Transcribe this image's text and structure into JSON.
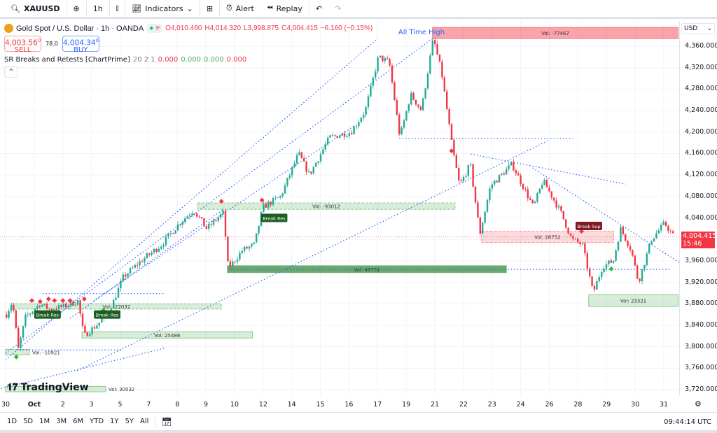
{
  "toolbar": {
    "symbol": "XAUUSD",
    "interval": "1h",
    "indicators": "Indicators",
    "alert": "Alert",
    "replay": "Replay"
  },
  "legend": {
    "title": "Gold Spot / U.S. Dollar · 1h · OANDA",
    "open": "O4,010.460",
    "high": "H4,014.320",
    "low": "L3,998.875",
    "close": "C4,004.415",
    "change": "−6.160 (−0.15%)",
    "sell_price": "4,003.56",
    "sell_sup": "0",
    "sell_label": "SELL",
    "spread": "78.0",
    "buy_price": "4,004.34",
    "buy_sup": "0",
    "buy_label": "BUY",
    "indicator": "SR Breaks and Retests [ChartPrime]",
    "params": "20 2 1",
    "v1": "0.000",
    "v2": "0.000",
    "v3": "0.000",
    "v4": "0.000"
  },
  "price_axis": {
    "currency": "USD",
    "ticks": [
      "4,360.000",
      "4,320.000",
      "4,280.000",
      "4,240.000",
      "4,200.000",
      "4,160.000",
      "4,120.000",
      "4,080.000",
      "4,040.000",
      "3,960.000",
      "3,920.000",
      "3,880.000",
      "3,840.000",
      "3,800.000",
      "3,760.000",
      "3,720.000"
    ],
    "last_price": "4,004.415",
    "countdown": "15:46"
  },
  "colors": {
    "up": "#22ab94",
    "down": "#f23645",
    "trend": "#2962ff",
    "support": "#4caf50",
    "resistance": "#f23645"
  },
  "bottom": {
    "ranges": [
      "1D",
      "5D",
      "1M",
      "3M",
      "6M",
      "YTD",
      "1Y",
      "5Y",
      "All"
    ],
    "clock": "09:44:14 UTC"
  },
  "branding": "TradingView",
  "chart_data": {
    "type": "candlestick",
    "ylim": [
      3700,
      4400
    ],
    "x_ticks": [
      {
        "label": "30",
        "date": "Sep 30"
      },
      {
        "label": "Oct",
        "date": "Oct 1"
      },
      {
        "label": "2",
        "date": "Oct 2"
      },
      {
        "label": "3",
        "date": "Oct 3"
      },
      {
        "label": "5",
        "date": "Oct 5"
      },
      {
        "label": "7",
        "date": "Oct 7"
      },
      {
        "label": "8",
        "date": "Oct 8"
      },
      {
        "label": "9",
        "date": "Oct 9"
      },
      {
        "label": "10",
        "date": "Oct 10"
      },
      {
        "label": "12",
        "date": "Oct 12"
      },
      {
        "label": "14",
        "date": "Oct 14"
      },
      {
        "label": "15",
        "date": "Oct 15"
      },
      {
        "label": "16",
        "date": "Oct 16"
      },
      {
        "label": "17",
        "date": "Oct 17"
      },
      {
        "label": "19",
        "date": "Oct 19"
      },
      {
        "label": "21",
        "date": "Oct 21"
      },
      {
        "label": "22",
        "date": "Oct 22"
      },
      {
        "label": "23",
        "date": "Oct 23"
      },
      {
        "label": "24",
        "date": "Oct 24"
      },
      {
        "label": "26",
        "date": "Oct 26"
      },
      {
        "label": "28",
        "date": "Oct 28"
      },
      {
        "label": "29",
        "date": "Oct 29"
      },
      {
        "label": "30",
        "date": "Oct 30"
      },
      {
        "label": "31",
        "date": "Oct 31"
      }
    ],
    "price_path": [
      [
        "Sep 30 00:00",
        3860
      ],
      [
        "Sep 30 05:00",
        3885
      ],
      [
        "Sep 30 10:00",
        3795
      ],
      [
        "Sep 30 16:00",
        3855
      ],
      [
        "Oct 1 04:00",
        3880
      ],
      [
        "Oct 1 12:00",
        3870
      ],
      [
        "Oct 2 00:00",
        3875
      ],
      [
        "Oct 2 12:00",
        3885
      ],
      [
        "Oct 2 17:00",
        3820
      ],
      [
        "Oct 3 06:00",
        3845
      ],
      [
        "Oct 3 17:00",
        3880
      ],
      [
        "Oct 5 02:00",
        3930
      ],
      [
        "Oct 5 17:00",
        3960
      ],
      [
        "Oct 7 10:00",
        3990
      ],
      [
        "Oct 8 01:00",
        4030
      ],
      [
        "Oct 8 13:00",
        4055
      ],
      [
        "Oct 9 00:00",
        4020
      ],
      [
        "Oct 9 14:00",
        4050
      ],
      [
        "Oct 9 18:00",
        3945
      ],
      [
        "Oct 10 06:00",
        3980
      ],
      [
        "Oct 10 16:00",
        3990
      ],
      [
        "Oct 10 23:00",
        4060
      ],
      [
        "Oct 12 14:00",
        4080
      ],
      [
        "Oct 14 05:00",
        4160
      ],
      [
        "Oct 14 14:00",
        4120
      ],
      [
        "Oct 15 07:00",
        4190
      ],
      [
        "Oct 16 01:00",
        4200
      ],
      [
        "Oct 16 13:00",
        4240
      ],
      [
        "Oct 17 00:00",
        4340
      ],
      [
        "Oct 17 09:00",
        4330
      ],
      [
        "Oct 17 18:00",
        4190
      ],
      [
        "Oct 19 03:00",
        4270
      ],
      [
        "Oct 19 12:00",
        4240
      ],
      [
        "Oct 19 22:00",
        4375
      ],
      [
        "Oct 21 05:00",
        4310
      ],
      [
        "Oct 21 14:00",
        4170
      ],
      [
        "Oct 21 20:00",
        4100
      ],
      [
        "Oct 22 05:00",
        4140
      ],
      [
        "Oct 22 13:00",
        4010
      ],
      [
        "Oct 22 22:00",
        4100
      ],
      [
        "Oct 23 16:00",
        4140
      ],
      [
        "Oct 24 01:00",
        4100
      ],
      [
        "Oct 24 10:00",
        4060
      ],
      [
        "Oct 24 18:00",
        4110
      ],
      [
        "Oct 26 09:00",
        4050
      ],
      [
        "Oct 26 18:00",
        4000
      ],
      [
        "Oct 28 03:00",
        3990
      ],
      [
        "Oct 28 12:00",
        3900
      ],
      [
        "Oct 28 20:00",
        3950
      ],
      [
        "Oct 29 05:00",
        3960
      ],
      [
        "Oct 29 11:00",
        4020
      ],
      [
        "Oct 29 20:00",
        3980
      ],
      [
        "Oct 30 02:00",
        3920
      ],
      [
        "Oct 30 13:00",
        4000
      ],
      [
        "Oct 31 00:00",
        4030
      ],
      [
        "Oct 31 08:00",
        4004
      ]
    ],
    "zones": [
      {
        "label": "Vol: -77467",
        "kind": "resistance",
        "style": "solid",
        "from": "Oct 19 22:00",
        "to": "Oct 31 12:00",
        "top": 4395,
        "bottom": 4374
      },
      {
        "label": "Vol: -93012",
        "kind": "support",
        "style": "dashed",
        "from": "Oct 8 17:00",
        "to": "Oct 21 17:00",
        "top": 4068,
        "bottom": 4056
      },
      {
        "label": "Vol: 49751",
        "kind": "support",
        "style": "strong",
        "from": "Oct 9 18:00",
        "to": "Oct 23 12:00",
        "top": 3951,
        "bottom": 3938
      },
      {
        "label": "Vol: 28752",
        "kind": "resistance",
        "style": "dashed",
        "from": "Oct 22 15:00",
        "to": "Oct 29 06:00",
        "top": 4015,
        "bottom": 3994
      },
      {
        "label": "Vol: 23321",
        "kind": "support",
        "style": "solid",
        "from": "Oct 28 09:00",
        "to": "Oct 31 12:00",
        "top": 3897,
        "bottom": 3875
      },
      {
        "label": "Vol: 25486",
        "kind": "support",
        "style": "solid",
        "from": "Oct 2 16:00",
        "to": "Oct 10 15:00",
        "top": 3828,
        "bottom": 3816
      },
      {
        "label": "Vol: -22032",
        "kind": "support",
        "style": "dashed",
        "from": "Sep 30 05:00",
        "to": "Oct 9 13:00",
        "top": 3880,
        "bottom": 3870
      },
      {
        "label": "Vol: -10921",
        "kind": "support",
        "style": "solid",
        "from": "Sep 30 00:00",
        "to": "Sep 30 20:00",
        "top": 3795,
        "bottom": 3785
      },
      {
        "label": "Vol: 30032",
        "kind": "support",
        "style": "solid",
        "from": "Sep 30 00:00",
        "to": "Oct 3 12:00",
        "top": 3726,
        "bottom": 3716
      }
    ],
    "labels": [
      {
        "text": "Break Res",
        "kind": "support",
        "t": "Oct 1 00:00",
        "price": 3860
      },
      {
        "text": "Break Res",
        "kind": "support",
        "t": "Oct 3 02:00",
        "price": 3860
      },
      {
        "text": "Break Res",
        "kind": "support",
        "t": "Oct 10 22:00",
        "price": 4040
      },
      {
        "text": "Break Sup",
        "kind": "resistance",
        "t": "Oct 26 22:00",
        "price": 4025
      }
    ],
    "annotation": "All Time High",
    "trendlines": [
      [
        "Sep 30 00:00",
        3775,
        "Oct 17 00:00",
        4374
      ],
      [
        "Sep 30 00:00",
        3788,
        "Oct 19 22:00",
        4374
      ],
      [
        "Oct 2 12:00",
        3755,
        "Oct 26 00:00",
        4185
      ],
      [
        "Sep 29 20:00",
        3722,
        "Oct 7 13:00",
        3797
      ],
      [
        "Oct 17 18:00",
        4188,
        "Oct 26 20:00",
        4188
      ],
      [
        "Oct 22 06:00",
        4159,
        "Oct 29 16:00",
        4103
      ],
      [
        "Oct 24 10:00",
        4133,
        "Oct 31 13:00",
        3957
      ],
      [
        "Oct 9 18:00",
        3944,
        "Oct 31 06:00",
        3944
      ],
      [
        "Sep 30 09:00",
        3794,
        "Oct 5 01:00",
        3794
      ],
      [
        "Oct 1 07:00",
        3899,
        "Oct 7 13:00",
        3899
      ],
      [
        "Oct 2 06:00",
        3853,
        "Oct 9 14:00",
        4055
      ],
      [
        "Oct 3 02:00",
        3886,
        "Oct 16 04:00",
        4211
      ]
    ],
    "markers": [
      [
        "Sep 30 22:00",
        3886,
        "down"
      ],
      [
        "Oct 1 05:00",
        3884,
        "down"
      ],
      [
        "Oct 1 12:00",
        3889,
        "down"
      ],
      [
        "Oct 1 17:00",
        3886,
        "down"
      ],
      [
        "Oct 2 00:00",
        3886,
        "down"
      ],
      [
        "Oct 2 06:00",
        3886,
        "down"
      ],
      [
        "Oct 2 18:00",
        3889,
        "down"
      ],
      [
        "Oct 9 13:00",
        4071,
        "down"
      ],
      [
        "Oct 10 23:00",
        4073,
        "down"
      ],
      [
        "Oct 21 14:00",
        4165,
        "down"
      ],
      [
        "Oct 28 03:00",
        4015,
        "down"
      ],
      [
        "Sep 30 09:00",
        3781,
        "up"
      ],
      [
        "Oct 3 10:00",
        3868,
        "up"
      ],
      [
        "Oct 29 04:00",
        3945,
        "up"
      ]
    ]
  }
}
